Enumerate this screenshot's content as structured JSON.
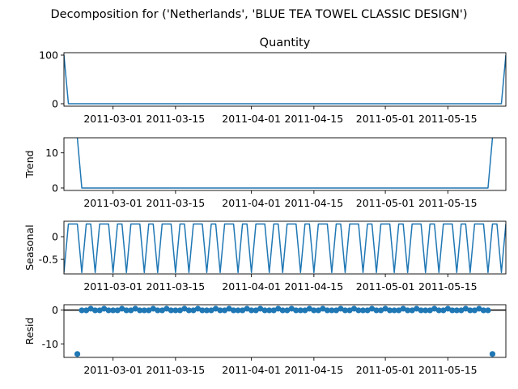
{
  "chart_data": {
    "type": "line",
    "title": "Decomposition for ('Netherlands', 'BLUE TEA TOWEL CLASSIC DESIGN')",
    "x_tick_labels": [
      "2011-03-01",
      "2011-03-15",
      "2011-04-01",
      "2011-04-15",
      "2011-05-01",
      "2011-05-15"
    ],
    "x_tick_dates": [
      "2011-03-01",
      "2011-03-15",
      "2011-04-01",
      "2011-04-15",
      "2011-05-01",
      "2011-05-15"
    ],
    "x_range": [
      "2011-02-18",
      "2011-05-28"
    ],
    "season_period": 7,
    "panels": [
      {
        "name": "observed",
        "title": "Quantity",
        "ylabel": "",
        "style": "line",
        "ylim": [
          -5,
          105
        ],
        "yticks": [
          0,
          100
        ],
        "points": [
          [
            "2011-02-18",
            100
          ],
          [
            "2011-02-19",
            0
          ],
          [
            "2011-05-27",
            0
          ],
          [
            "2011-05-28",
            100
          ]
        ]
      },
      {
        "name": "trend",
        "title": "",
        "ylabel": "Trend",
        "style": "line",
        "ylim": [
          -0.7,
          14.3
        ],
        "yticks": [
          0,
          10
        ],
        "points": [
          [
            "2011-02-21",
            14.28
          ],
          [
            "2011-02-22",
            0
          ],
          [
            "2011-05-24",
            0
          ],
          [
            "2011-05-25",
            14.28
          ]
        ]
      },
      {
        "name": "seasonal",
        "title": "",
        "ylabel": "Seasonal",
        "style": "line",
        "ylim": [
          -0.82,
          0.34
        ],
        "yticks": [
          0.0,
          -0.5
        ],
        "weekly_pattern": [
          -0.79,
          0.28,
          0.28,
          0.28,
          -0.79,
          0.28,
          0.28
        ]
      },
      {
        "name": "resid",
        "title": "",
        "ylabel": "Resid",
        "style": "scatter",
        "ylim": [
          -14,
          1.6
        ],
        "yticks": [
          0,
          -10
        ],
        "zero_line": true,
        "range": [
          "2011-02-21",
          "2011-05-25"
        ],
        "outliers": [
          [
            "2011-02-21",
            -13.0
          ],
          [
            "2011-05-25",
            -13.0
          ]
        ],
        "weekly_pattern": [
          -0.07,
          -0.07,
          -0.07,
          0.43,
          -0.07,
          -0.07,
          0.43
        ]
      }
    ]
  }
}
